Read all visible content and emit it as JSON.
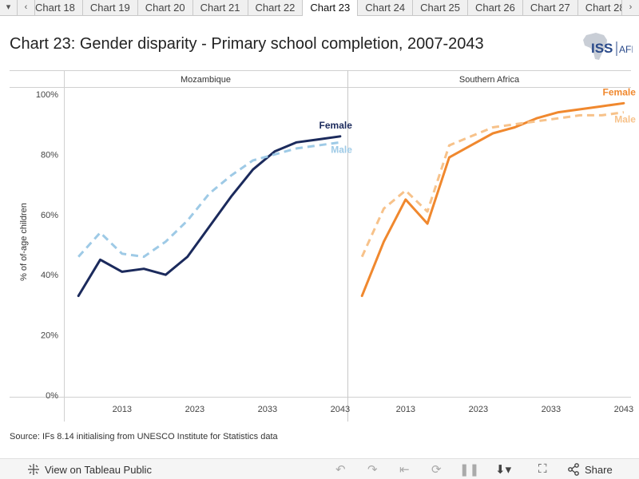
{
  "tabs": {
    "items": [
      "Chart 18",
      "Chart 19",
      "Chart 20",
      "Chart 21",
      "Chart 22",
      "Chart 23",
      "Chart 24",
      "Chart 25",
      "Chart 26",
      "Chart 27",
      "Chart 28"
    ],
    "active": "Chart 23",
    "scroll_left_glyph": "▾",
    "prev_glyph": "‹",
    "next_glyph": "›"
  },
  "header": {
    "title": "Chart 23: Gender disparity - Primary school completion, 2007-2043",
    "logo_text": "ISS",
    "logo_suffix": "AFI"
  },
  "source": "Source: IFs 8.14 initialising from UNESCO Institute for Statistics data",
  "footer": {
    "view_label": "View on Tableau Public",
    "share_label": "Share"
  },
  "colors": {
    "moz_female": "#1b2a5c",
    "moz_male": "#9ecae6",
    "sa_female": "#f0882e",
    "sa_male": "#f7c28a"
  },
  "chart_data": {
    "type": "line",
    "title": "Chart 23: Gender disparity - Primary school completion, 2007-2043",
    "ylabel": "% of of-age children",
    "ylim": [
      0,
      100
    ],
    "yticks": [
      0,
      20,
      40,
      60,
      80,
      100
    ],
    "ytick_labels": [
      "0%",
      "20%",
      "40%",
      "60%",
      "80%",
      "100%"
    ],
    "xlim": [
      2005,
      2044
    ],
    "xticks": [
      2013,
      2023,
      2033,
      2043
    ],
    "x": [
      2007,
      2010,
      2013,
      2016,
      2019,
      2022,
      2025,
      2028,
      2031,
      2034,
      2037,
      2040,
      2043
    ],
    "panels": [
      {
        "name": "Mozambique",
        "series": [
          {
            "name": "Female",
            "style": "solid",
            "values": [
              33,
              45,
              41,
              42,
              40,
              46,
              56,
              66,
              75,
              81,
              84,
              85,
              86
            ]
          },
          {
            "name": "Male",
            "style": "dashed",
            "values": [
              46,
              54,
              47,
              46,
              51,
              58,
              67,
              73,
              78,
              80,
              82,
              83,
              84
            ]
          }
        ]
      },
      {
        "name": "Southern Africa",
        "series": [
          {
            "name": "Female",
            "style": "solid",
            "values": [
              33,
              51,
              65,
              57,
              79,
              83,
              87,
              89,
              92,
              94,
              95,
              96,
              97
            ]
          },
          {
            "name": "Male",
            "style": "dashed",
            "values": [
              46,
              62,
              68,
              61,
              83,
              86,
              89,
              90,
              91,
              92,
              93,
              93,
              94
            ]
          }
        ]
      }
    ]
  }
}
